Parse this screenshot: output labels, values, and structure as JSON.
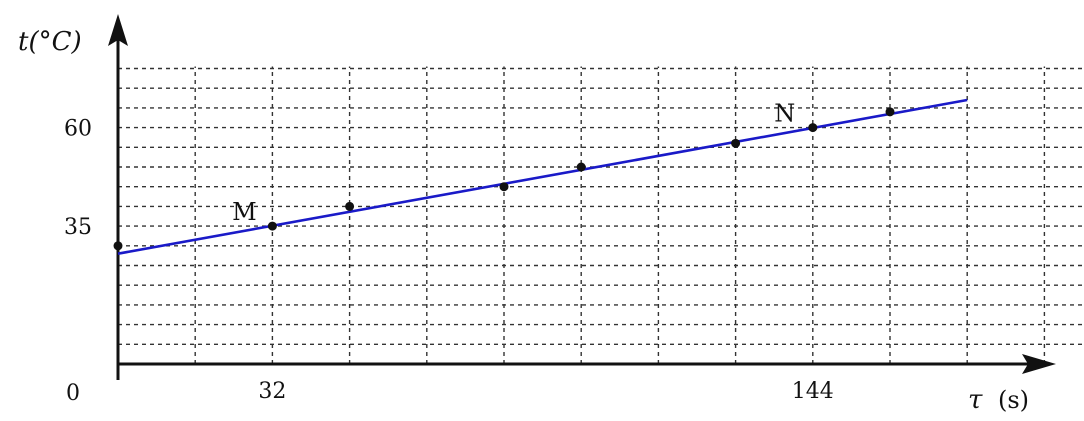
{
  "chart_data": {
    "type": "scatter",
    "x_axis": {
      "symbol": "τ",
      "unit": "(s)",
      "range": [
        0,
        216
      ],
      "ticks": [
        32,
        144
      ],
      "grid_step": 16
    },
    "y_axis": {
      "label": "t(°C)",
      "range": [
        0,
        75
      ],
      "ticks": [
        35,
        60
      ],
      "grid_step": 5
    },
    "origin_label": "0",
    "grid": "dashed",
    "series": [
      {
        "points": [
          [
            0,
            30
          ],
          [
            32,
            35
          ],
          [
            48,
            40
          ],
          [
            80,
            45
          ],
          [
            96,
            50
          ],
          [
            128,
            56
          ],
          [
            144,
            60
          ],
          [
            160,
            64
          ]
        ]
      }
    ],
    "fit_line": {
      "color": "#1a1ac8",
      "from": [
        0,
        28
      ],
      "to": [
        176,
        67
      ]
    },
    "annotations": [
      {
        "text": "M",
        "at": [
          32,
          35
        ]
      },
      {
        "text": "N",
        "at": [
          144,
          60
        ]
      }
    ]
  }
}
